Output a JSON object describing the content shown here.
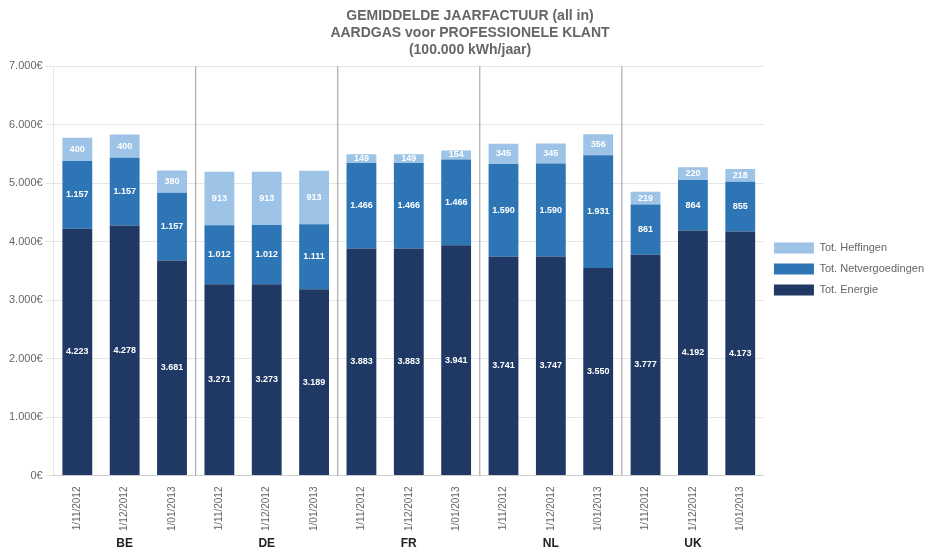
{
  "chart_data": {
    "type": "bar",
    "stacked": true,
    "title": "GEMIDDELDE JAARFACTUUR (all in)\nAARDGAS voor PROFESSIONELE KLANT\n(100.000 kWh/jaar)",
    "categories": [
      "1/11/2012",
      "1/12/2012",
      "1/01/2013",
      "1/11/2012",
      "1/12/2012",
      "1/01/2013",
      "1/11/2012",
      "1/12/2012",
      "1/01/2013",
      "1/11/2012",
      "1/12/2012",
      "1/01/2013",
      "1/11/2012",
      "1/12/2012",
      "1/01/2013"
    ],
    "category_groups": [
      "BE",
      "BE",
      "BE",
      "DE",
      "DE",
      "DE",
      "FR",
      "FR",
      "FR",
      "NL",
      "NL",
      "NL",
      "UK",
      "UK",
      "UK"
    ],
    "series": [
      {
        "name": "Tot. Energie",
        "color": "#1F3864",
        "values": [
          4223,
          4278,
          3681,
          3271,
          3273,
          3189,
          3883,
          3883,
          3941,
          3741,
          3747,
          3550,
          3777,
          4192,
          4173
        ],
        "value_labels": [
          "4.223",
          "4.278",
          "3.681",
          "3.271",
          "3.273",
          "3.189",
          "3.883",
          "3.883",
          "3.941",
          "3.741",
          "3.747",
          "3.550",
          "3.777",
          "4.192",
          "4.173"
        ]
      },
      {
        "name": "Tot. Netvergoedingen",
        "color": "#2E75B6",
        "values": [
          1157,
          1157,
          1157,
          1012,
          1012,
          1111,
          1466,
          1466,
          1466,
          1590,
          1590,
          1931,
          861,
          864,
          855
        ],
        "value_labels": [
          "1.157",
          "1.157",
          "1.157",
          "1.012",
          "1.012",
          "1.111",
          "1.466",
          "1.466",
          "1.466",
          "1.590",
          "1.590",
          "1.931",
          "861",
          "864",
          "855"
        ]
      },
      {
        "name": "Tot. Heffingen",
        "color": "#9DC3E6",
        "values": [
          400,
          400,
          380,
          913,
          913,
          913,
          149,
          149,
          154,
          345,
          345,
          356,
          219,
          220,
          218
        ],
        "value_labels": [
          "400",
          "400",
          "380",
          "913",
          "913",
          "913",
          "149",
          "149",
          "154",
          "345",
          "345",
          "356",
          "219",
          "220",
          "218"
        ]
      }
    ],
    "ylim": [
      0,
      7000
    ],
    "yticks": [
      {
        "value": 0,
        "label": "0€"
      },
      {
        "value": 1000,
        "label": "1.000€"
      },
      {
        "value": 2000,
        "label": "2.000€"
      },
      {
        "value": 3000,
        "label": "3.000€"
      },
      {
        "value": 4000,
        "label": "4.000€"
      },
      {
        "value": 5000,
        "label": "5.000€"
      },
      {
        "value": 6000,
        "label": "6.000€"
      },
      {
        "value": 7000,
        "label": "7.000€"
      }
    ],
    "grid": true,
    "legend": "right",
    "data_labels": true
  }
}
